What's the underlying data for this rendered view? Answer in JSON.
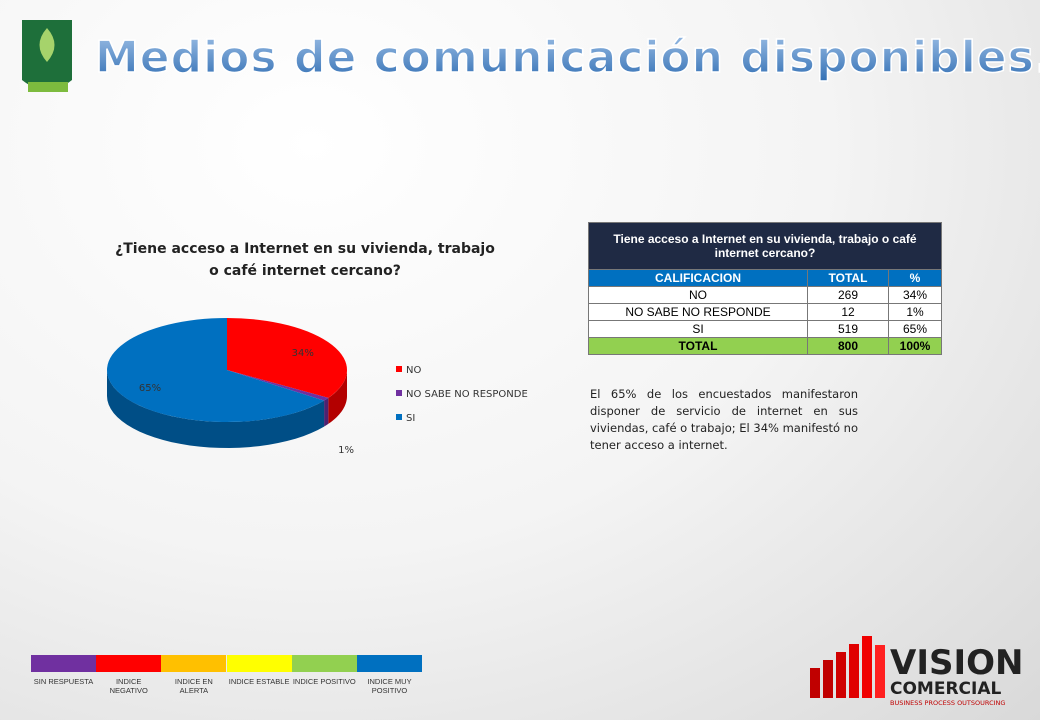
{
  "header": {
    "title": "Medios de comunicación disponibles."
  },
  "chart_data": {
    "type": "pie",
    "title": "¿Tiene acceso a Internet en su vivienda, trabajo o café internet cercano?",
    "categories": [
      "NO",
      "NO SABE NO RESPONDE",
      "SI"
    ],
    "values": [
      34,
      1,
      65
    ],
    "value_labels": [
      "34%",
      "1%",
      "65%"
    ],
    "colors": [
      "#ff0000",
      "#7030a0",
      "#0070c0"
    ],
    "legend": "right"
  },
  "table": {
    "title": "Tiene acceso a Internet en su vivienda, trabajo o café internet cercano?",
    "columns": [
      "CALIFICACION",
      "TOTAL",
      "%"
    ],
    "rows": [
      [
        "NO",
        269,
        "34%"
      ],
      [
        "NO SABE NO RESPONDE",
        12,
        "1%"
      ],
      [
        "SI",
        519,
        "65%"
      ]
    ],
    "total": [
      "TOTAL",
      800,
      "100%"
    ]
  },
  "paragraph": "El 65% de los encuestados manifestaron disponer de servicio de internet en sus viviendas, café o trabajo; El 34% manifestó no tener acceso a internet.",
  "index_legend": [
    {
      "label": "SIN RESPUESTA",
      "color": "#7030a0"
    },
    {
      "label": "INDICE NEGATIVO",
      "color": "#ff0000"
    },
    {
      "label": "INDICE EN ALERTA",
      "color": "#ffc000"
    },
    {
      "label": "INDICE ESTABLE",
      "color": "#ffff00"
    },
    {
      "label": "INDICE POSITIVO",
      "color": "#92d050"
    },
    {
      "label": "INDICE MUY POSITIVO",
      "color": "#0070c0"
    }
  ],
  "logo": {
    "name": "VISION",
    "sub": "COMERCIAL",
    "tagline": "BUSINESS PROCESS OUTSOURCING"
  }
}
